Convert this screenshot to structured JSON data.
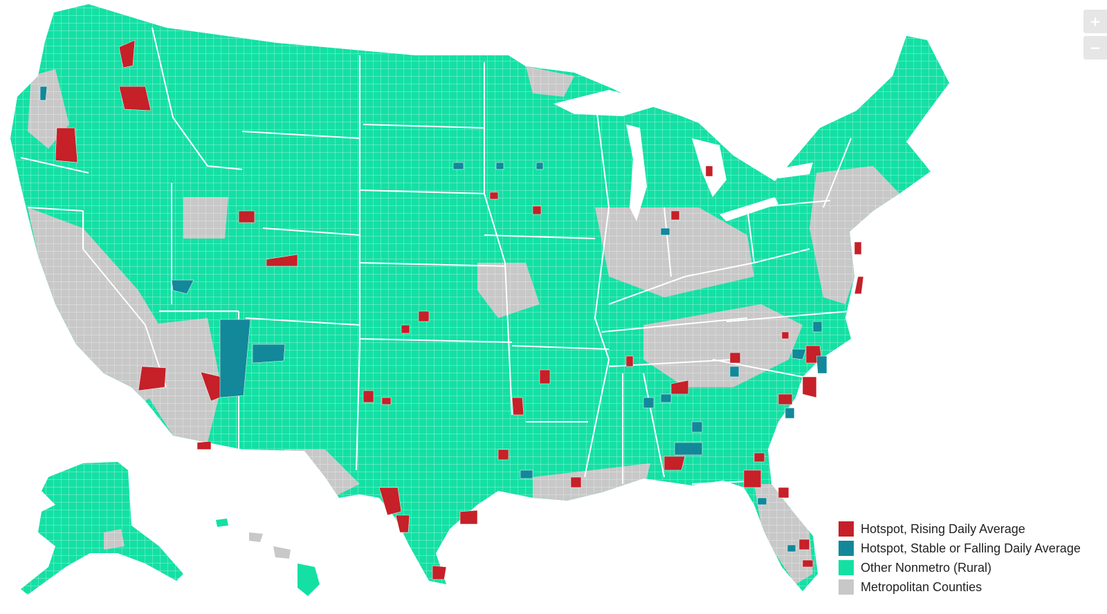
{
  "map": {
    "colors": {
      "hotspot_rising": "#c62028",
      "hotspot_stable": "#12889a",
      "nonmetro": "#14e0a4",
      "metro": "#c8c8c8",
      "border": "#ffffff"
    }
  },
  "zoom": {
    "in_label": "+",
    "out_label": "−"
  },
  "legend": {
    "items": [
      {
        "label": "Hotspot, Rising Daily Average",
        "color": "#c62028"
      },
      {
        "label": "Hotspot, Stable or Falling Daily Average",
        "color": "#12889a"
      },
      {
        "label": "Other Nonmetro (Rural)",
        "color": "#14e0a4"
      },
      {
        "label": "Metropolitan Counties",
        "color": "#c8c8c8"
      }
    ]
  }
}
